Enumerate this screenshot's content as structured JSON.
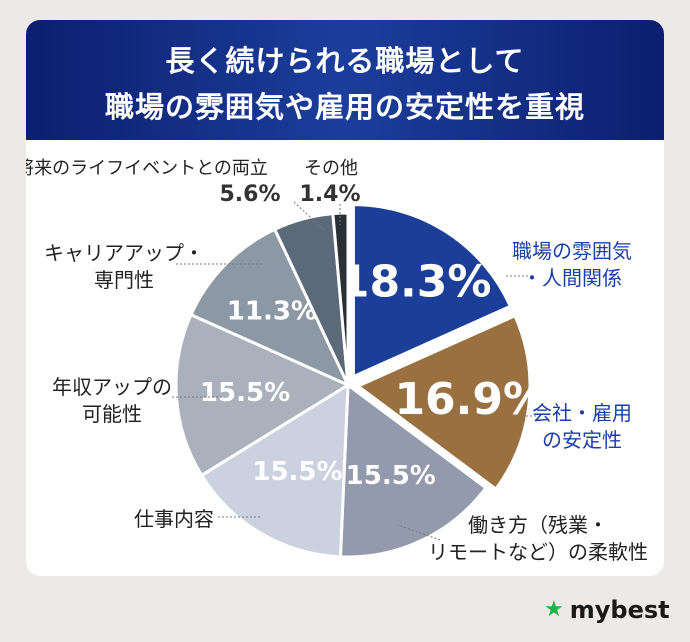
{
  "chart_data": {
    "type": "pie",
    "title_lines": [
      "長く続けられる職場として",
      "職場の雰囲気や雇用の安定性を重視"
    ],
    "slices": [
      {
        "label_lines": [
          "職場の雰囲気",
          "・人間関係"
        ],
        "value": 18.3,
        "value_label": "18.3%",
        "color": "#1b3e98",
        "exploded": true,
        "label_color": "#1b3ea8"
      },
      {
        "label_lines": [
          "会社・雇用",
          "の安定性"
        ],
        "value": 16.9,
        "value_label": "16.9%",
        "color": "#9a7040",
        "exploded": true,
        "label_color": "#1b3ea8"
      },
      {
        "label_lines": [
          "働き方（残業・",
          "リモートなど）の柔軟性"
        ],
        "value": 15.5,
        "value_label": "15.5%",
        "color": "#939aae",
        "exploded": false,
        "label_color": "#222222"
      },
      {
        "label_lines": [
          "仕事内容"
        ],
        "value": 15.5,
        "value_label": "15.5%",
        "color": "#cbd1df",
        "exploded": false,
        "label_color": "#222222"
      },
      {
        "label_lines": [
          "年収アップの",
          "可能性"
        ],
        "value": 15.5,
        "value_label": "15.5%",
        "color": "#aab1bd",
        "exploded": false,
        "label_color": "#222222"
      },
      {
        "label_lines": [
          "キャリアアップ・",
          "専門性"
        ],
        "value": 11.3,
        "value_label": "11.3%",
        "color": "#8d98a5",
        "exploded": false,
        "label_color": "#222222"
      },
      {
        "label_lines": [
          "将来のライフイベントとの両立"
        ],
        "value": 5.6,
        "value_label": "5.6%",
        "color": "#5b6979",
        "exploded": false,
        "label_color": "#222222"
      },
      {
        "label_lines": [
          "その他"
        ],
        "value": 1.4,
        "value_label": "1.4%",
        "color": "#2b3036",
        "exploded": false,
        "label_color": "#222222"
      }
    ]
  },
  "brand": {
    "name": "mybest",
    "icon": "star-icon"
  }
}
